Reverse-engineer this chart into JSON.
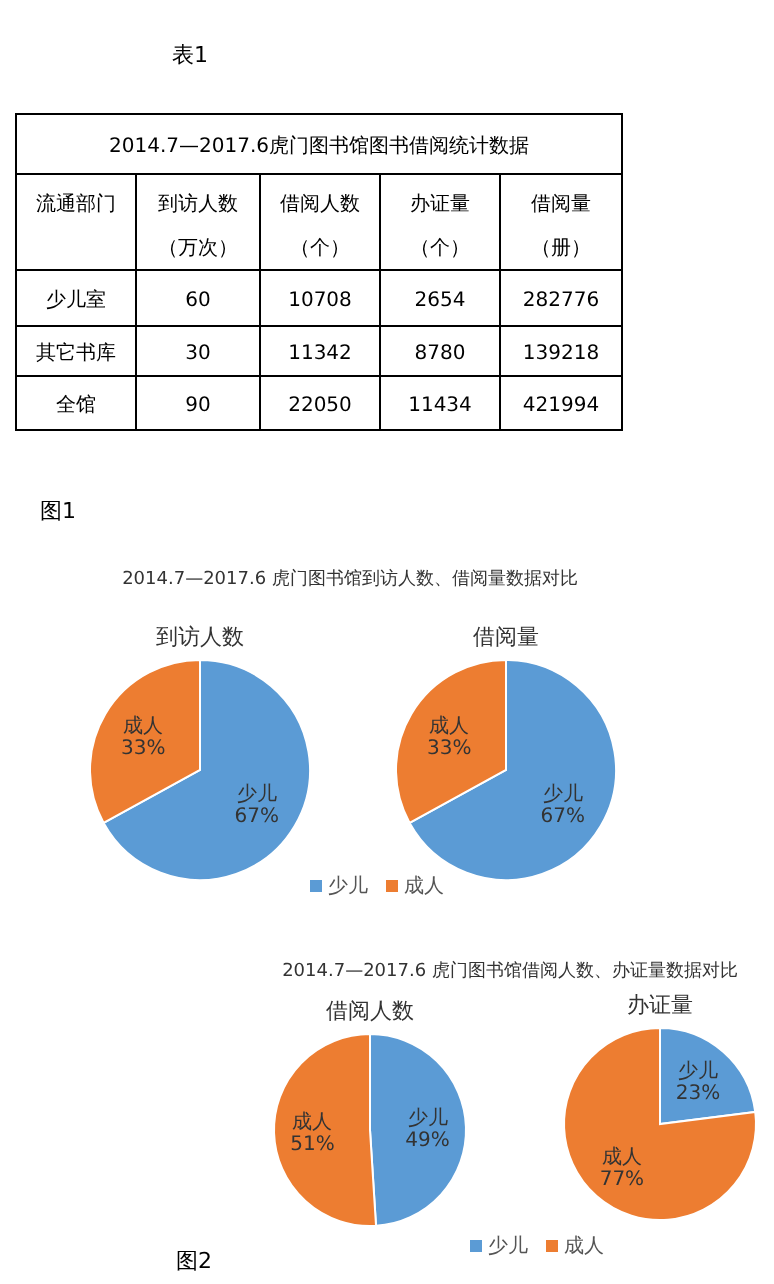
{
  "chart_data": [
    {
      "type": "other",
      "title": "2014.7—2017.6虎门图书馆图书借阅统计数据",
      "annotations": [
        "表1"
      ],
      "ylabel": "流通部门",
      "categories": [
        "到访人数（万次）",
        "借阅人数（个）",
        "办证量（个）",
        "借阅量（册）"
      ],
      "y_categories": [
        "少儿室",
        "其它书库",
        "全馆"
      ],
      "cell_labels": [
        [
          "60",
          "10708",
          "2654",
          "282776"
        ],
        [
          "30",
          "11342",
          "8780",
          "139218"
        ],
        [
          "90",
          "22050",
          "11434",
          "421994"
        ]
      ]
    },
    {
      "type": "pie",
      "title": "到访人数",
      "subtitle": "2014.7—2017.6 虎门图书馆到访人数、借阅量数据对比",
      "annotations": [
        "图1"
      ],
      "categories": [
        "少儿",
        "成人"
      ],
      "values": [
        67,
        33
      ],
      "value_labels": [
        "67%",
        "33%"
      ],
      "colors": [
        "#5b9bd5",
        "#ed7d31"
      ],
      "legend": "bottom"
    },
    {
      "type": "pie",
      "title": "借阅量",
      "categories": [
        "少儿",
        "成人"
      ],
      "values": [
        67,
        33
      ],
      "value_labels": [
        "67%",
        "33%"
      ],
      "colors": [
        "#5b9bd5",
        "#ed7d31"
      ]
    },
    {
      "type": "pie",
      "title": "借阅人数",
      "subtitle": "2014.7—2017.6 虎门图书馆借阅人数、办证量数据对比",
      "annotations": [
        "图2"
      ],
      "categories": [
        "少儿",
        "成人"
      ],
      "values": [
        49,
        51
      ],
      "value_labels": [
        "49%",
        "51%"
      ],
      "colors": [
        "#5b9bd5",
        "#ed7d31"
      ],
      "legend": "bottom"
    },
    {
      "type": "pie",
      "title": "办证量",
      "categories": [
        "少儿",
        "成人"
      ],
      "values": [
        23,
        77
      ],
      "value_labels": [
        "23%",
        "77%"
      ],
      "colors": [
        "#5b9bd5",
        "#ed7d31"
      ]
    }
  ]
}
